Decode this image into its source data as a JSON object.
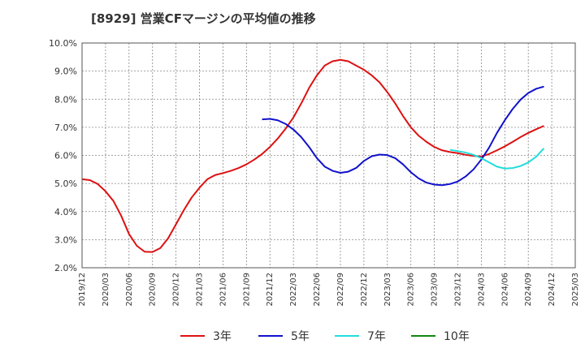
{
  "title": "[8929]  営業CFマージンの平均値の推移",
  "chart_data": {
    "type": "line",
    "title": "[8929]  営業CFマージンの平均値の推移",
    "xlabel": "",
    "ylabel": "",
    "y_range": [
      2.0,
      10.0
    ],
    "y_ticks": [
      "2.0%",
      "3.0%",
      "4.0%",
      "5.0%",
      "6.0%",
      "7.0%",
      "8.0%",
      "9.0%",
      "10.0%"
    ],
    "x_ticks": [
      "2019/12",
      "2020/03",
      "2020/06",
      "2020/09",
      "2020/12",
      "2021/03",
      "2021/06",
      "2021/09",
      "2021/12",
      "2022/03",
      "2022/06",
      "2022/09",
      "2022/12",
      "2023/03",
      "2023/06",
      "2023/09",
      "2023/12",
      "2024/03",
      "2024/06",
      "2024/09",
      "2024/12",
      "2025/03"
    ],
    "x_range": [
      "2019/12",
      "2025/03"
    ],
    "grid": true,
    "legend_position": "bottom",
    "series": [
      {
        "name": "3年",
        "color": "#dd1111",
        "points": [
          [
            "2019/12",
            5.15
          ],
          [
            "2020/01",
            5.12
          ],
          [
            "2020/02",
            4.98
          ],
          [
            "2020/03",
            4.72
          ],
          [
            "2020/04",
            4.38
          ],
          [
            "2020/05",
            3.85
          ],
          [
            "2020/06",
            3.2
          ],
          [
            "2020/07",
            2.78
          ],
          [
            "2020/08",
            2.57
          ],
          [
            "2020/09",
            2.56
          ],
          [
            "2020/10",
            2.7
          ],
          [
            "2020/11",
            3.05
          ],
          [
            "2020/12",
            3.55
          ],
          [
            "2021/01",
            4.05
          ],
          [
            "2021/02",
            4.5
          ],
          [
            "2021/03",
            4.85
          ],
          [
            "2021/04",
            5.15
          ],
          [
            "2021/05",
            5.3
          ],
          [
            "2021/06",
            5.37
          ],
          [
            "2021/07",
            5.45
          ],
          [
            "2021/08",
            5.55
          ],
          [
            "2021/09",
            5.68
          ],
          [
            "2021/10",
            5.85
          ],
          [
            "2021/11",
            6.05
          ],
          [
            "2021/12",
            6.3
          ],
          [
            "2022/01",
            6.6
          ],
          [
            "2022/02",
            6.95
          ],
          [
            "2022/03",
            7.35
          ],
          [
            "2022/04",
            7.85
          ],
          [
            "2022/05",
            8.4
          ],
          [
            "2022/06",
            8.85
          ],
          [
            "2022/07",
            9.2
          ],
          [
            "2022/08",
            9.35
          ],
          [
            "2022/09",
            9.4
          ],
          [
            "2022/10",
            9.35
          ],
          [
            "2022/11",
            9.2
          ],
          [
            "2022/12",
            9.05
          ],
          [
            "2023/01",
            8.85
          ],
          [
            "2023/02",
            8.6
          ],
          [
            "2023/03",
            8.25
          ],
          [
            "2023/04",
            7.85
          ],
          [
            "2023/05",
            7.4
          ],
          [
            "2023/06",
            7.0
          ],
          [
            "2023/07",
            6.7
          ],
          [
            "2023/08",
            6.48
          ],
          [
            "2023/09",
            6.3
          ],
          [
            "2023/10",
            6.18
          ],
          [
            "2023/11",
            6.12
          ],
          [
            "2023/12",
            6.08
          ],
          [
            "2024/01",
            6.02
          ],
          [
            "2024/02",
            5.98
          ],
          [
            "2024/03",
            5.96
          ],
          [
            "2024/04",
            6.05
          ],
          [
            "2024/05",
            6.18
          ],
          [
            "2024/06",
            6.32
          ],
          [
            "2024/07",
            6.48
          ],
          [
            "2024/08",
            6.65
          ],
          [
            "2024/09",
            6.8
          ],
          [
            "2024/10",
            6.93
          ],
          [
            "2024/11",
            7.05
          ]
        ]
      },
      {
        "name": "5年",
        "color": "#1111cc",
        "points": [
          [
            "2021/11",
            7.28
          ],
          [
            "2021/12",
            7.3
          ],
          [
            "2022/01",
            7.25
          ],
          [
            "2022/02",
            7.12
          ],
          [
            "2022/03",
            6.92
          ],
          [
            "2022/04",
            6.65
          ],
          [
            "2022/05",
            6.3
          ],
          [
            "2022/06",
            5.9
          ],
          [
            "2022/07",
            5.6
          ],
          [
            "2022/08",
            5.45
          ],
          [
            "2022/09",
            5.38
          ],
          [
            "2022/10",
            5.42
          ],
          [
            "2022/11",
            5.55
          ],
          [
            "2022/12",
            5.8
          ],
          [
            "2023/01",
            5.97
          ],
          [
            "2023/02",
            6.03
          ],
          [
            "2023/03",
            6.01
          ],
          [
            "2023/04",
            5.9
          ],
          [
            "2023/05",
            5.68
          ],
          [
            "2023/06",
            5.4
          ],
          [
            "2023/07",
            5.18
          ],
          [
            "2023/08",
            5.03
          ],
          [
            "2023/09",
            4.96
          ],
          [
            "2023/10",
            4.94
          ],
          [
            "2023/11",
            4.98
          ],
          [
            "2023/12",
            5.07
          ],
          [
            "2024/01",
            5.25
          ],
          [
            "2024/02",
            5.5
          ],
          [
            "2024/03",
            5.85
          ],
          [
            "2024/04",
            6.28
          ],
          [
            "2024/05",
            6.8
          ],
          [
            "2024/06",
            7.25
          ],
          [
            "2024/07",
            7.65
          ],
          [
            "2024/08",
            7.98
          ],
          [
            "2024/09",
            8.22
          ],
          [
            "2024/10",
            8.37
          ],
          [
            "2024/11",
            8.45
          ]
        ]
      },
      {
        "name": "7年",
        "color": "#22dddd",
        "points": [
          [
            "2023/11",
            6.2
          ],
          [
            "2023/12",
            6.15
          ],
          [
            "2024/01",
            6.1
          ],
          [
            "2024/02",
            6.02
          ],
          [
            "2024/03",
            5.9
          ],
          [
            "2024/04",
            5.75
          ],
          [
            "2024/05",
            5.6
          ],
          [
            "2024/06",
            5.53
          ],
          [
            "2024/07",
            5.55
          ],
          [
            "2024/08",
            5.62
          ],
          [
            "2024/09",
            5.75
          ],
          [
            "2024/10",
            5.95
          ],
          [
            "2024/11",
            6.25
          ]
        ]
      },
      {
        "name": "10年",
        "color": "#118811",
        "points": []
      }
    ]
  }
}
